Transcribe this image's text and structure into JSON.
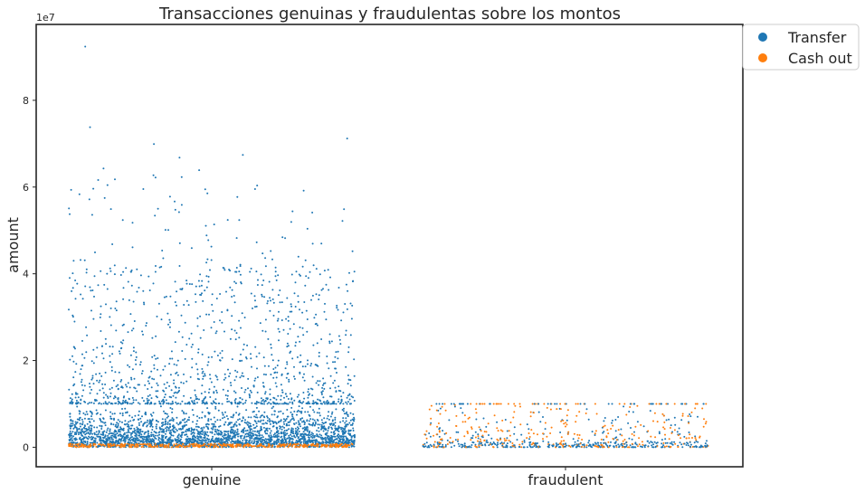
{
  "chart_data": {
    "type": "scatter",
    "title": "Transacciones genuinas y fraudulentas sobre los montos",
    "xlabel": "",
    "ylabel": "amount",
    "offset_text": "1e7",
    "categories": [
      "genuine",
      "fraudulent"
    ],
    "yticks": [
      0,
      2,
      4,
      6,
      8
    ],
    "ytick_labels": [
      "0",
      "2",
      "4",
      "6",
      "8"
    ],
    "ylim": [
      -4500000,
      97500000
    ],
    "grid": false,
    "legend_placement": "outside-top-right",
    "series": [
      {
        "name": "Transfer",
        "color": "#1f77b4",
        "genuine": {
          "max": 92400000,
          "dense_upper": 10000000
        },
        "fraudulent": {
          "max": 10000000
        },
        "outliers": [
          {
            "category": "genuine",
            "value": 92400000
          },
          {
            "category": "genuine",
            "value": 73800000
          },
          {
            "category": "genuine",
            "value": 71200000
          },
          {
            "category": "genuine",
            "value": 69900000
          },
          {
            "category": "genuine",
            "value": 67400000
          },
          {
            "category": "genuine",
            "value": 66800000
          },
          {
            "category": "genuine",
            "value": 64300000
          },
          {
            "category": "genuine",
            "value": 63900000
          }
        ]
      },
      {
        "name": "Cash out",
        "color": "#ff7f0e",
        "genuine": {
          "max": 800000
        },
        "fraudulent": {
          "max": 10000000
        }
      }
    ]
  },
  "legend": {
    "items": [
      {
        "label": "Transfer",
        "color": "#1f77b4"
      },
      {
        "label": "Cash out",
        "color": "#ff7f0e"
      }
    ]
  }
}
